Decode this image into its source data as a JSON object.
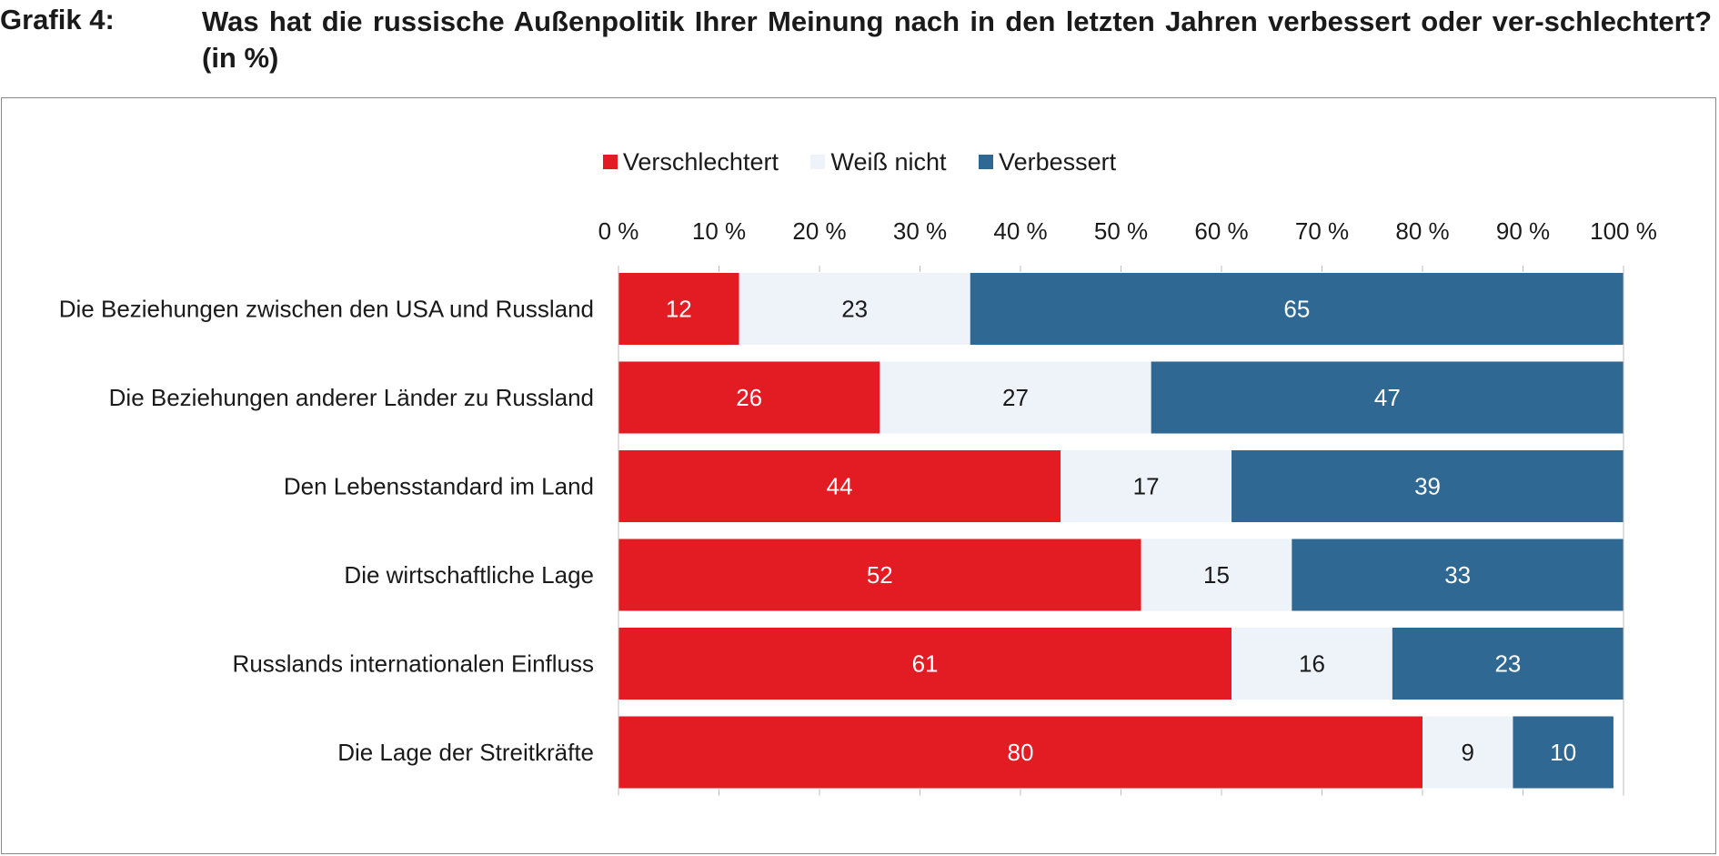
{
  "header": {
    "figure_label": "Grafik 4:",
    "title": "Was hat die russische Außenpolitik Ihrer Meinung nach in den letzten Jahren verbessert oder ver-schlechtert? (in %)"
  },
  "chart_data": {
    "type": "bar",
    "orientation": "horizontal",
    "stacked": true,
    "categories": [
      "Die Beziehungen zwischen den USA und Russland",
      "Die Beziehungen anderer Länder zu Russland",
      "Den Lebensstandard im Land",
      "Die wirtschaftliche Lage",
      "Russlands internationalen Einfluss",
      "Die Lage der Streitkräfte"
    ],
    "series": [
      {
        "name": "Verschlechtert",
        "color": "#e31b23",
        "label_color": "#ffffff",
        "values": [
          12,
          26,
          44,
          52,
          61,
          80
        ]
      },
      {
        "name": "Weiß nicht",
        "color": "#eef3fa",
        "label_color": "#1a1a1a",
        "values": [
          23,
          27,
          17,
          15,
          16,
          9
        ]
      },
      {
        "name": "Verbessert",
        "color": "#2e6893",
        "label_color": "#ffffff",
        "values": [
          65,
          47,
          39,
          33,
          23,
          10
        ]
      }
    ],
    "x_ticks": [
      "0 %",
      "10 %",
      "20 %",
      "30 %",
      "40 %",
      "50 %",
      "60 %",
      "70 %",
      "80 %",
      "90 %",
      "100 %"
    ],
    "xlim": [
      0,
      100
    ],
    "legend_position": "top",
    "grid": false
  }
}
